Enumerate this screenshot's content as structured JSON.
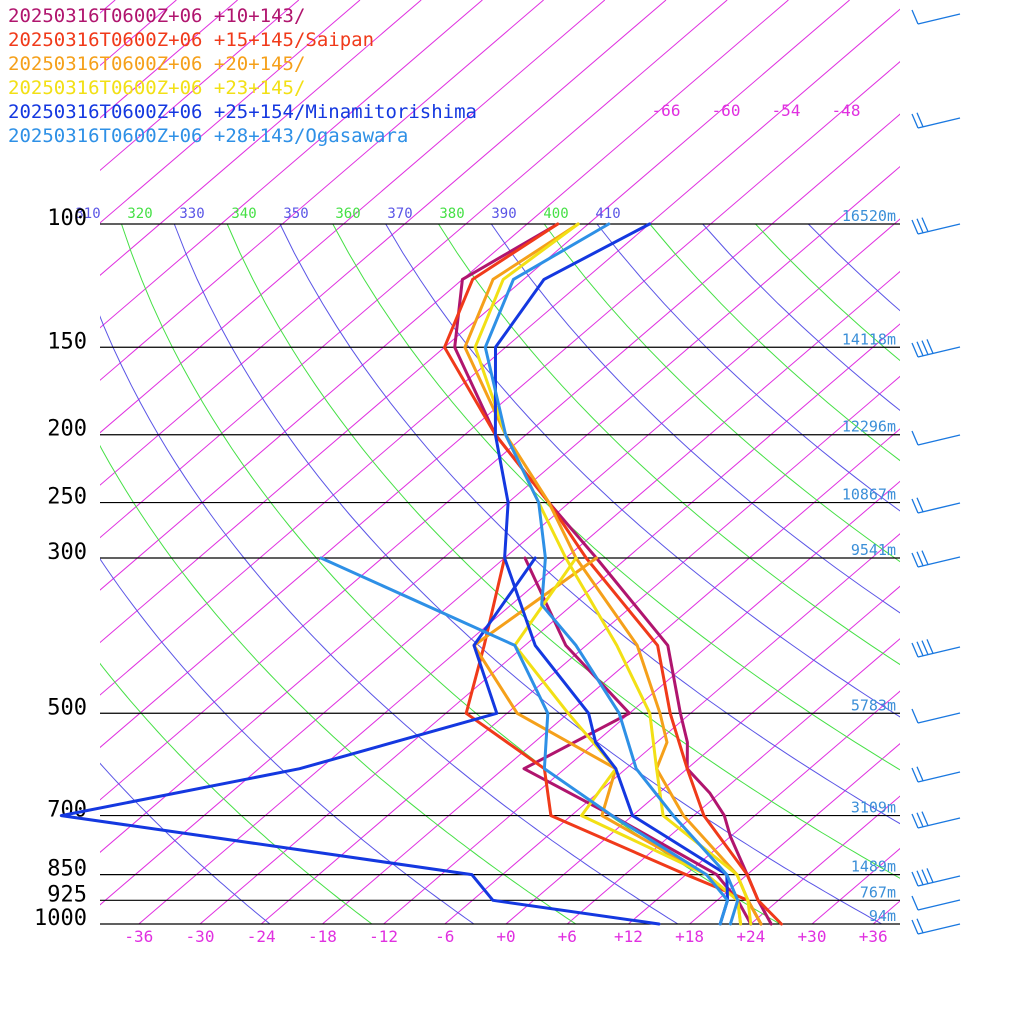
{
  "chart_data": {
    "type": "line",
    "title": "",
    "xlabel": "",
    "ylabel": "",
    "x_unit": "temperature (°C), skewed",
    "y_unit": "pressure (hPa)",
    "grid": true,
    "legend_position": "top-left",
    "xlim": [
      -40,
      40
    ],
    "ylim": [
      1000,
      100
    ],
    "x_ticks": [
      -36,
      -30,
      -24,
      -18,
      -12,
      -6,
      0,
      6,
      12,
      18,
      24,
      30,
      36
    ],
    "x_tick_labels": [
      "-36",
      "-30",
      "-24",
      "-18",
      "-12",
      "-6",
      "+0",
      "+6",
      "+12",
      "+18",
      "+24",
      "+30",
      "+36"
    ],
    "pressure_levels": [
      {
        "p": 100,
        "label": "100",
        "height": "16520m"
      },
      {
        "p": 150,
        "label": "150",
        "height": "14118m"
      },
      {
        "p": 200,
        "label": "200",
        "height": "12296m"
      },
      {
        "p": 250,
        "label": "250",
        "height": "10867m"
      },
      {
        "p": 300,
        "label": "300",
        "height": "9541m"
      },
      {
        "p": 500,
        "label": "500",
        "height": "5783m"
      },
      {
        "p": 700,
        "label": "700",
        "height": "3109m"
      },
      {
        "p": 850,
        "label": "850",
        "height": "1489m"
      },
      {
        "p": 925,
        "label": "925",
        "height": "767m"
      },
      {
        "p": 1000,
        "label": "1000",
        "height": "94m"
      }
    ],
    "upper_isotherms": [
      {
        "label": "-66",
        "value": -66
      },
      {
        "label": "-60",
        "value": -60
      },
      {
        "label": "-54",
        "value": -54
      },
      {
        "label": "-48",
        "value": -48
      }
    ],
    "theta_labels": [
      "310",
      "320",
      "330",
      "340",
      "350",
      "360",
      "370",
      "380",
      "390",
      "400",
      "410"
    ],
    "series": [
      {
        "name": "20250316T0600Z+06 +10+143/",
        "color": "#b0156e",
        "temperature": [
          [
            100,
            -75
          ],
          [
            120,
            -78
          ],
          [
            150,
            -71
          ],
          [
            200,
            -57
          ],
          [
            250,
            -44
          ],
          [
            300,
            -33
          ],
          [
            400,
            -16
          ],
          [
            500,
            -7
          ],
          [
            550,
            -3
          ],
          [
            600,
            0
          ],
          [
            650,
            5
          ],
          [
            700,
            9
          ],
          [
            750,
            12
          ],
          [
            850,
            18
          ],
          [
            925,
            22
          ],
          [
            1000,
            26
          ]
        ],
        "dewpoint": [
          [
            300,
            -40
          ],
          [
            400,
            -26
          ],
          [
            500,
            -12
          ],
          [
            600,
            -16
          ],
          [
            700,
            -2
          ],
          [
            850,
            15
          ],
          [
            925,
            20
          ],
          [
            1000,
            24
          ]
        ]
      },
      {
        "name": "20250316T0600Z+06 +15+145/Saipan",
        "color": "#f03a1a",
        "temperature": [
          [
            100,
            -75
          ],
          [
            120,
            -77
          ],
          [
            150,
            -72
          ],
          [
            200,
            -57
          ],
          [
            250,
            -44
          ],
          [
            300,
            -34
          ],
          [
            400,
            -17
          ],
          [
            500,
            -8
          ],
          [
            600,
            0
          ],
          [
            700,
            7
          ],
          [
            850,
            18
          ],
          [
            925,
            22
          ],
          [
            1000,
            27
          ]
        ],
        "dewpoint": [
          [
            300,
            -42
          ],
          [
            400,
            -34
          ],
          [
            500,
            -28
          ],
          [
            600,
            -14
          ],
          [
            700,
            -8
          ],
          [
            850,
            12
          ],
          [
            925,
            21
          ],
          [
            1000,
            25
          ]
        ]
      },
      {
        "name": "20250316T0600Z+06 +20+145/",
        "color": "#f5a01a",
        "temperature": [
          [
            100,
            -73
          ],
          [
            120,
            -75
          ],
          [
            150,
            -70
          ],
          [
            200,
            -56
          ],
          [
            250,
            -44
          ],
          [
            300,
            -35
          ],
          [
            400,
            -19
          ],
          [
            500,
            -9
          ],
          [
            550,
            -5
          ],
          [
            600,
            -3
          ],
          [
            700,
            5
          ],
          [
            850,
            17
          ],
          [
            925,
            21
          ],
          [
            1000,
            25
          ]
        ],
        "dewpoint": [
          [
            300,
            -33
          ],
          [
            400,
            -35
          ],
          [
            500,
            -23
          ],
          [
            600,
            -7
          ],
          [
            700,
            -3
          ],
          [
            850,
            14
          ],
          [
            925,
            20
          ],
          [
            1000,
            23
          ]
        ]
      },
      {
        "name": "20250316T0600Z+06 +23+145/",
        "color": "#f2e015",
        "temperature": [
          [
            100,
            -73
          ],
          [
            120,
            -74
          ],
          [
            150,
            -69
          ],
          [
            200,
            -56
          ],
          [
            250,
            -45
          ],
          [
            300,
            -36
          ],
          [
            400,
            -21
          ],
          [
            500,
            -10
          ],
          [
            600,
            -3
          ],
          [
            700,
            3
          ],
          [
            850,
            17
          ],
          [
            925,
            21
          ],
          [
            1000,
            24
          ]
        ],
        "dewpoint": [
          [
            300,
            -35
          ],
          [
            400,
            -31
          ],
          [
            500,
            -18
          ],
          [
            600,
            -7
          ],
          [
            700,
            -5
          ],
          [
            850,
            14
          ],
          [
            925,
            20
          ],
          [
            1000,
            23
          ]
        ]
      },
      {
        "name": "20250316T0600Z+06 +25+154/Minamitorishima",
        "color": "#1438e0",
        "temperature": [
          [
            100,
            -66
          ],
          [
            120,
            -70
          ],
          [
            150,
            -67
          ],
          [
            200,
            -57
          ],
          [
            250,
            -48
          ],
          [
            300,
            -42
          ],
          [
            400,
            -29
          ],
          [
            500,
            -16
          ],
          [
            550,
            -12
          ],
          [
            600,
            -7
          ],
          [
            700,
            0
          ],
          [
            850,
            16
          ],
          [
            925,
            19
          ],
          [
            1000,
            21
          ]
        ],
        "dewpoint": [
          [
            300,
            -39
          ],
          [
            400,
            -35
          ],
          [
            500,
            -25
          ],
          [
            600,
            -38
          ],
          [
            700,
            -56
          ],
          [
            850,
            -9
          ],
          [
            925,
            -4
          ],
          [
            1000,
            15
          ]
        ]
      },
      {
        "name": "20250316T0600Z+06 +28+143/Ogasawara",
        "color": "#2e90e6",
        "temperature": [
          [
            100,
            -70
          ],
          [
            120,
            -73
          ],
          [
            150,
            -68
          ],
          [
            200,
            -56
          ],
          [
            250,
            -45
          ],
          [
            300,
            -38
          ],
          [
            350,
            -33
          ],
          [
            400,
            -25
          ],
          [
            500,
            -13
          ],
          [
            600,
            -5
          ],
          [
            700,
            4
          ],
          [
            850,
            16
          ],
          [
            925,
            20
          ],
          [
            1000,
            22
          ]
        ],
        "dewpoint": [
          [
            300,
            -60
          ],
          [
            400,
            -31
          ],
          [
            500,
            -20
          ],
          [
            600,
            -14
          ],
          [
            700,
            -2
          ],
          [
            850,
            14
          ],
          [
            925,
            19
          ],
          [
            1000,
            21
          ]
        ]
      }
    ],
    "wind_colors": {
      "barb": "#1a78e0"
    }
  }
}
